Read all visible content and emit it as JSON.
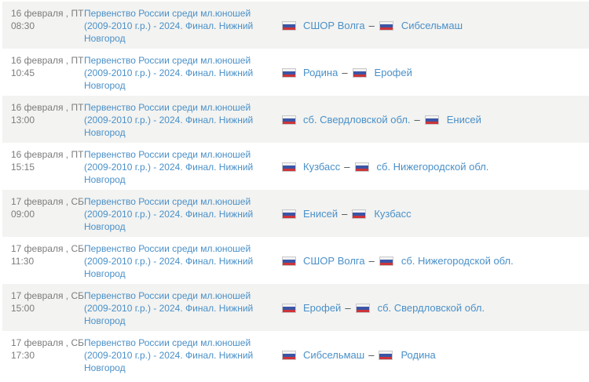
{
  "ui": {
    "separator": "–",
    "flag_name": "russia",
    "colors": {
      "link_blue": "#4a90c8",
      "date_gray": "#7d7d7d",
      "row_alt_bg": "#f3f3f1",
      "dash_gray": "#4a4a4a",
      "flag_blue": "#3b55a5",
      "flag_red": "#cc3439"
    }
  },
  "schedule": {
    "rows": [
      {
        "date": "16 февраля , ПТ",
        "time": "08:30",
        "tournament": "Первенство России среди мл.юношей (2009-2010 г.р.) - 2024. Финал. Нижний Новгород",
        "home_team": "СШОР Волга",
        "away_team": "Сибсельмаш"
      },
      {
        "date": "16 февраля , ПТ",
        "time": "10:45",
        "tournament": "Первенство России среди мл.юношей (2009-2010 г.р.) - 2024. Финал. Нижний Новгород",
        "home_team": "Родина",
        "away_team": "Ерофей"
      },
      {
        "date": "16 февраля , ПТ",
        "time": "13:00",
        "tournament": "Первенство России среди мл.юношей (2009-2010 г.р.) - 2024. Финал. Нижний Новгород",
        "home_team": "сб. Свердловской обл.",
        "away_team": "Енисей"
      },
      {
        "date": "16 февраля , ПТ",
        "time": "15:15",
        "tournament": "Первенство России среди мл.юношей (2009-2010 г.р.) - 2024. Финал. Нижний Новгород",
        "home_team": "Кузбасс",
        "away_team": "сб. Нижегородской обл."
      },
      {
        "date": "17 февраля , СБ",
        "time": "09:00",
        "tournament": "Первенство России среди мл.юношей (2009-2010 г.р.) - 2024. Финал. Нижний Новгород",
        "home_team": "Енисей",
        "away_team": "Кузбасс"
      },
      {
        "date": "17 февраля , СБ",
        "time": "11:30",
        "tournament": "Первенство России среди мл.юношей (2009-2010 г.р.) - 2024. Финал. Нижний Новгород",
        "home_team": "СШОР Волга",
        "away_team": "сб. Нижегородской обл."
      },
      {
        "date": "17 февраля , СБ",
        "time": "15:00",
        "tournament": "Первенство России среди мл.юношей (2009-2010 г.р.) - 2024. Финал. Нижний Новгород",
        "home_team": "Ерофей",
        "away_team": "сб. Свердловской обл."
      },
      {
        "date": "17 февраля , СБ",
        "time": "17:30",
        "tournament": "Первенство России среди мл.юношей (2009-2010 г.р.) - 2024. Финал. Нижний Новгород",
        "home_team": "Сибсельмаш",
        "away_team": "Родина"
      }
    ]
  }
}
